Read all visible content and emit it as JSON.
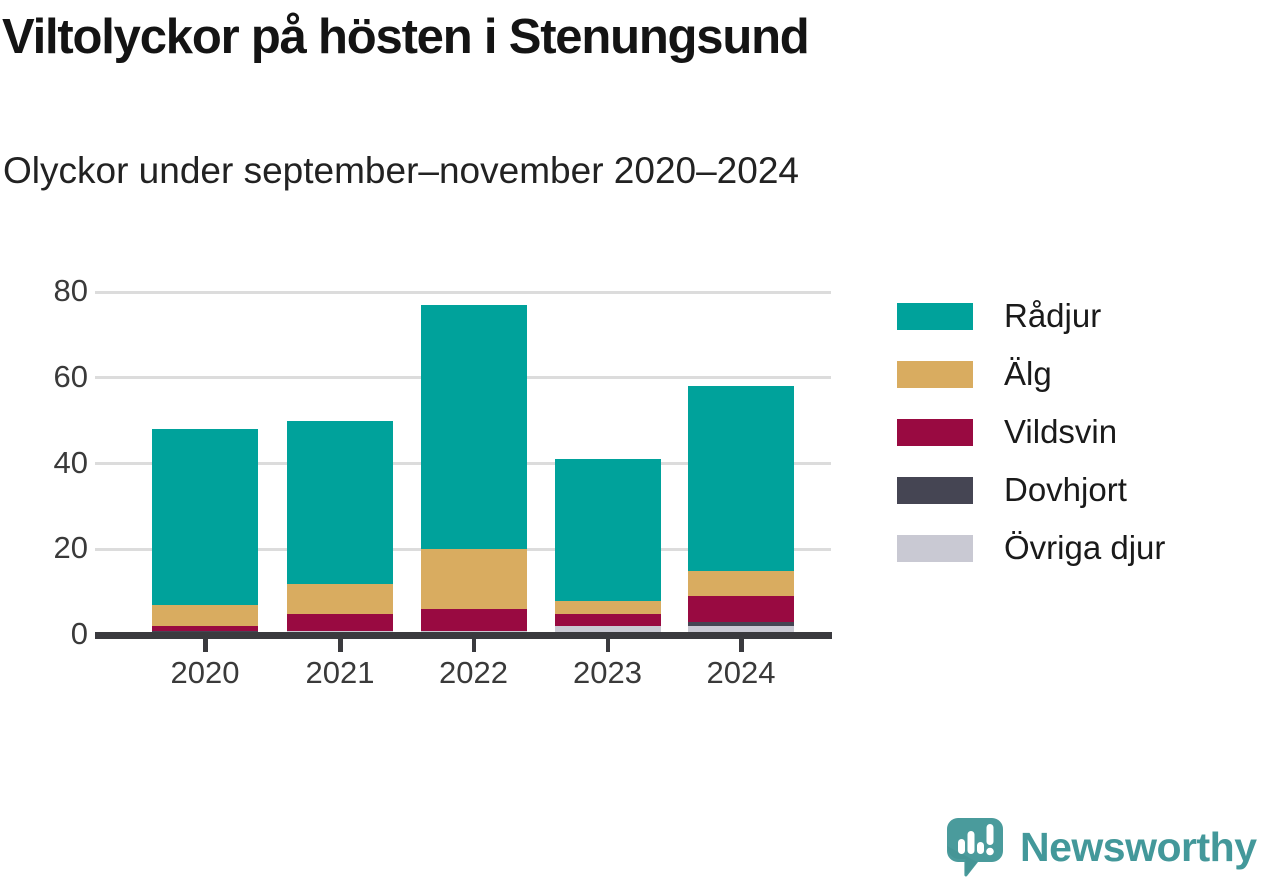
{
  "header": {
    "title": "Viltolyckor på hösten i Stenungsund",
    "subtitle": "Olyckor under september–november 2020–2024"
  },
  "chart_data": {
    "type": "bar",
    "stacked": true,
    "title": "Viltolyckor på hösten i Stenungsund",
    "subtitle": "Olyckor under september–november 2020–2024",
    "categories": [
      "2020",
      "2021",
      "2022",
      "2023",
      "2024"
    ],
    "series": [
      {
        "name": "Rådjur",
        "color": "#00a29b",
        "values": [
          41,
          38,
          57,
          33,
          43
        ]
      },
      {
        "name": "Älg",
        "color": "#d9ac60",
        "values": [
          5,
          7,
          14,
          3,
          6
        ]
      },
      {
        "name": "Vildsvin",
        "color": "#990a41",
        "values": [
          1,
          4,
          5,
          3,
          6
        ]
      },
      {
        "name": "Dovhjort",
        "color": "#454553",
        "values": [
          1,
          0,
          0,
          0,
          1
        ]
      },
      {
        "name": "Övriga djur",
        "color": "#c9c9d3",
        "values": [
          0,
          1,
          1,
          2,
          2
        ]
      }
    ],
    "stack_order_bottom_to_top": [
      "Övriga djur",
      "Dovhjort",
      "Vildsvin",
      "Älg",
      "Rådjur"
    ],
    "totals": [
      48,
      50,
      77,
      41,
      58
    ],
    "xlabel": "",
    "ylabel": "",
    "ylim": [
      0,
      80
    ],
    "yticks": [
      0,
      20,
      40,
      60,
      80
    ],
    "grid": "horizontal",
    "legend_position": "right"
  },
  "legend": {
    "items": [
      {
        "label": "Rådjur",
        "color": "#00a29b"
      },
      {
        "label": "Älg",
        "color": "#d9ac60"
      },
      {
        "label": "Vildsvin",
        "color": "#990a41"
      },
      {
        "label": "Dovhjort",
        "color": "#454553"
      },
      {
        "label": "Övriga djur",
        "color": "#c9c9d3"
      }
    ]
  },
  "colors": {
    "axis": "#3a3a3e",
    "gridline": "#dcdcdc",
    "tick_label": "#3a3a3a",
    "brand_teal": "#43989a"
  },
  "branding": {
    "logo_text": "Newsworthy"
  }
}
